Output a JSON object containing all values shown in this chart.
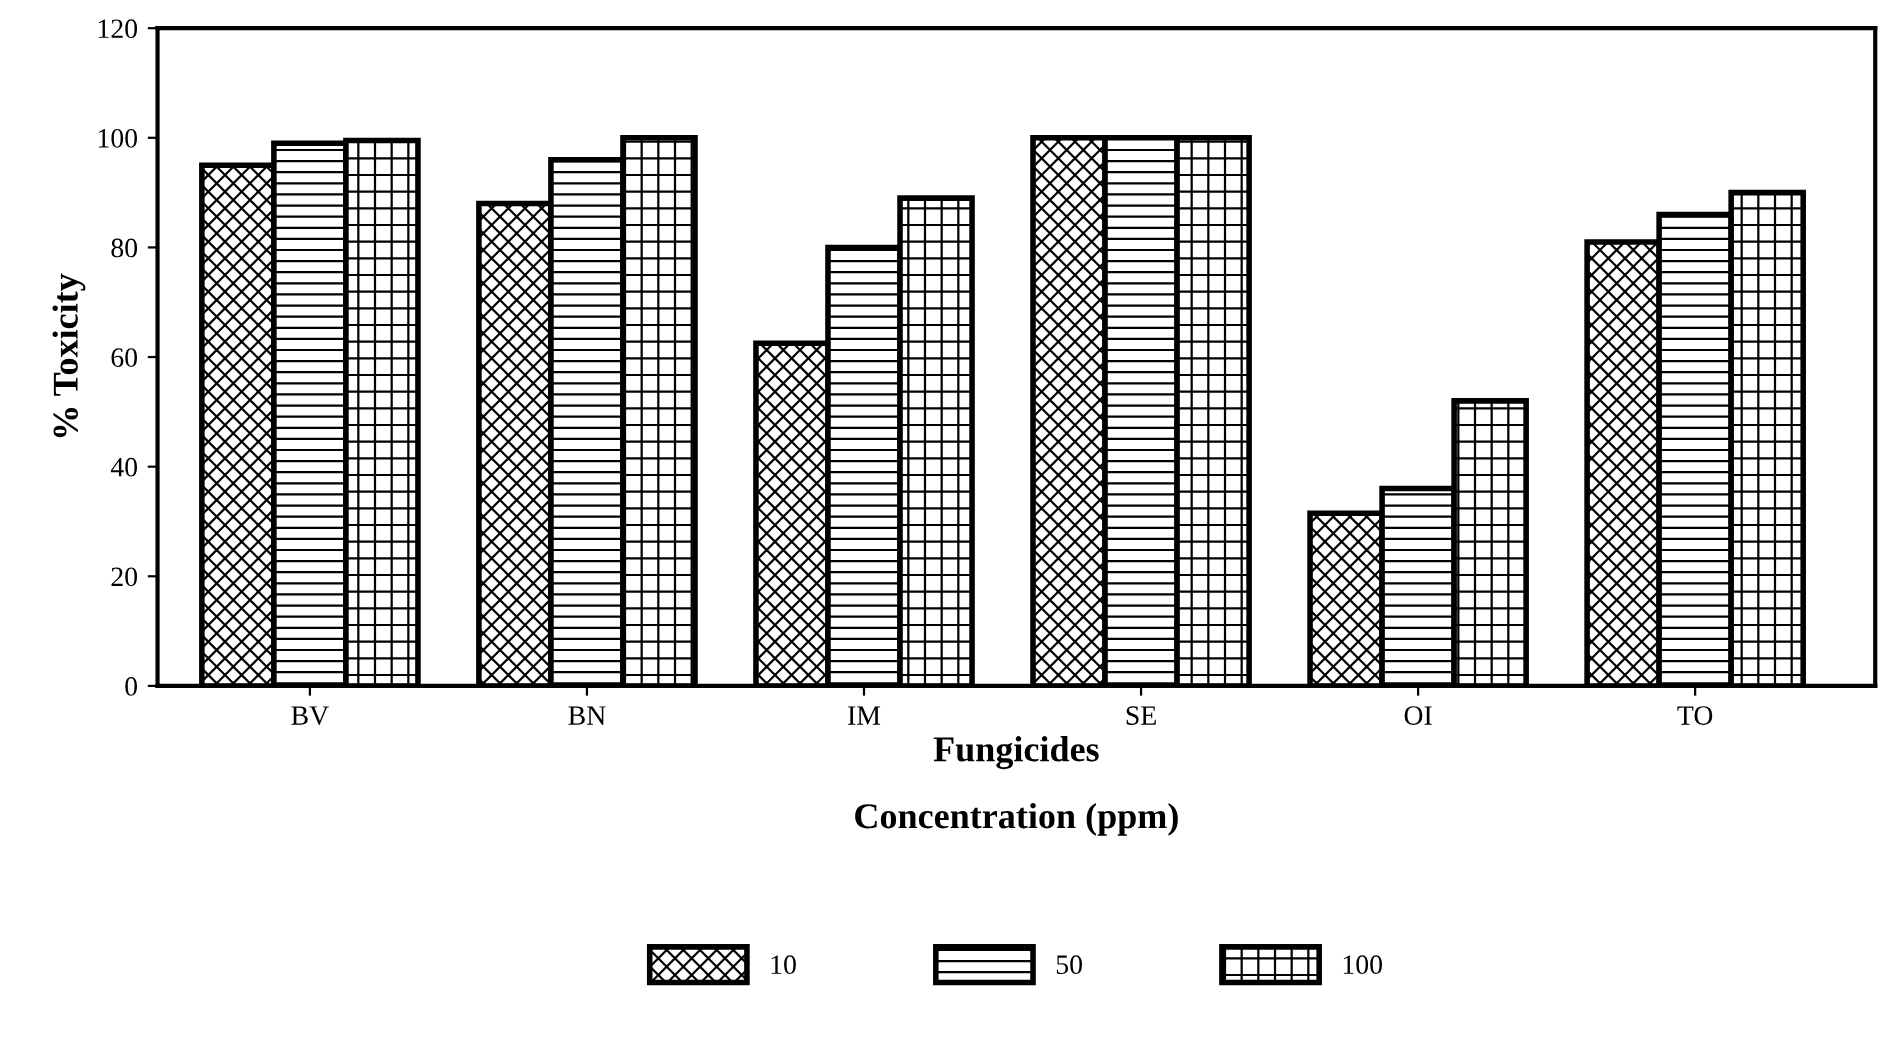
{
  "chart_data": {
    "type": "bar",
    "xlabel": "Fungicides",
    "ylabel": "% Toxicity",
    "legend_title": "Concentration (ppm)",
    "categories": [
      "BV",
      "BN",
      "IM",
      "SE",
      "OI",
      "TO"
    ],
    "series": [
      {
        "name": "10",
        "color": "#000000",
        "values": [
          95,
          88,
          62.5,
          100,
          31.5,
          81
        ]
      },
      {
        "name": "50",
        "color": "#000000",
        "values": [
          99,
          96,
          80,
          100,
          36,
          86
        ]
      },
      {
        "name": "100",
        "color": "#000000",
        "values": [
          99.5,
          100,
          89,
          100,
          52,
          90
        ]
      }
    ],
    "ylim": [
      0,
      120
    ],
    "yticks": [
      0,
      20,
      40,
      60,
      80,
      100,
      120
    ],
    "grid": false,
    "legend": "bottom"
  }
}
